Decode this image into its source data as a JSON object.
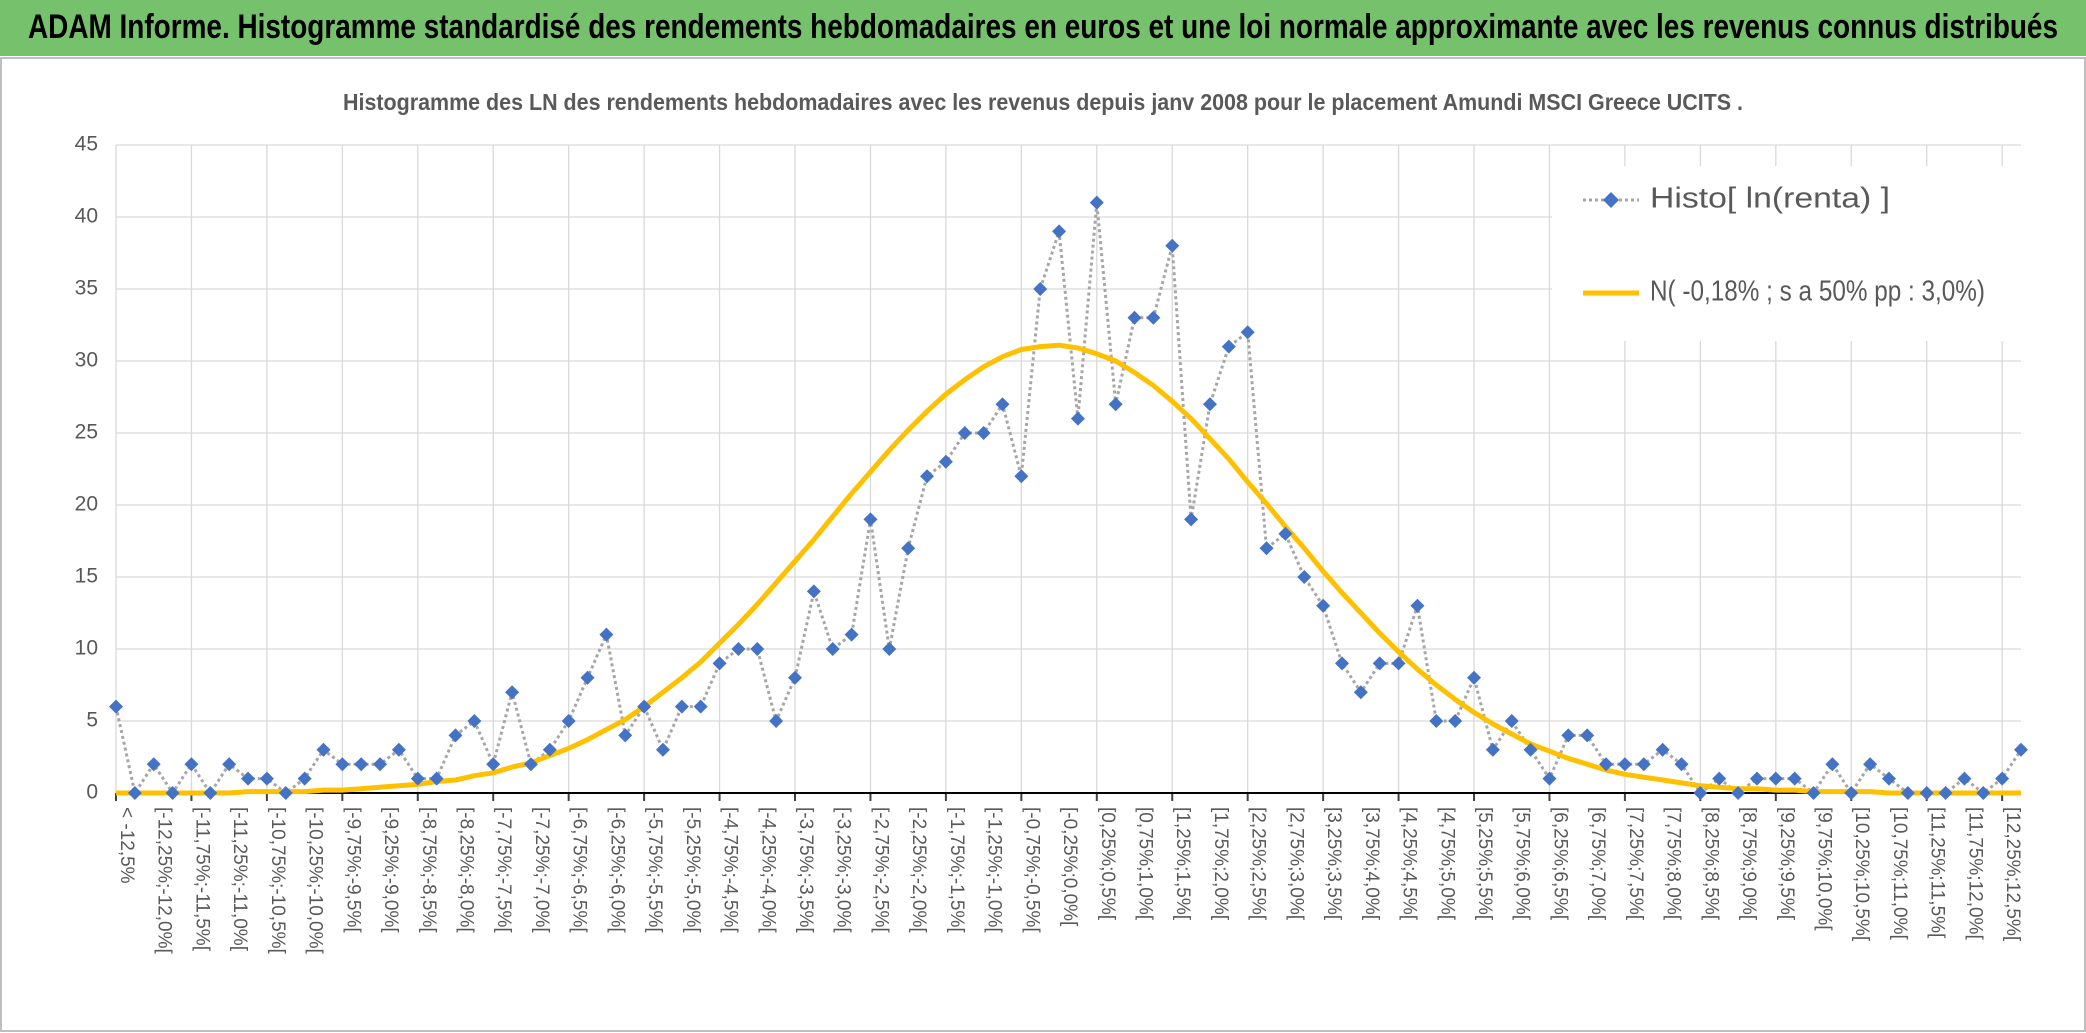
{
  "header": {
    "title": "ADAM Informe. Histogramme standardisé des rendements hebdomadaires en euros et une loi normale approximante avec les revenus connus distribués"
  },
  "chart_data": {
    "type": "line",
    "title": "Histogramme des LN des rendements hebdomadaires avec les revenus depuis janv 2008 pour le placement Amundi MSCI Greece UCITS .",
    "categories": [
      "< -12,5%",
      null,
      "[-12,25%;-12,0%[",
      null,
      "[-11,75%;-11,5%[",
      null,
      "[-11,25%;-11,0%[",
      null,
      "[-10,75%;-10,5%[",
      null,
      "[-10,25%;-10,0%[",
      null,
      "[-9,75%;-9,5%[",
      null,
      "[-9,25%;-9,0%[",
      null,
      "[-8,75%;-8,5%[",
      null,
      "[-8,25%;-8,0%[",
      null,
      "[-7,75%;-7,5%[",
      null,
      "[-7,25%;-7,0%[",
      null,
      "[-6,75%;-6,5%[",
      null,
      "[-6,25%;-6,0%[",
      null,
      "[-5,75%;-5,5%[",
      null,
      "[-5,25%;-5,0%[",
      null,
      "[-4,75%;-4,5%[",
      null,
      "[-4,25%;-4,0%[",
      null,
      "[-3,75%;-3,5%[",
      null,
      "[-3,25%;-3,0%[",
      null,
      "[-2,75%;-2,5%[",
      null,
      "[-2,25%;-2,0%[",
      null,
      "[-1,75%;-1,5%[",
      null,
      "[-1,25%;-1,0%[",
      null,
      "[-0,75%;-0,5%[",
      null,
      "[-0,25%;0,0%[",
      null,
      "[0,25%;0,5%[",
      null,
      "[0,75%;1,0%[",
      null,
      "[1,25%;1,5%[",
      null,
      "[1,75%;2,0%[",
      null,
      "[2,25%;2,5%[",
      null,
      "[2,75%;3,0%[",
      null,
      "[3,25%;3,5%[",
      null,
      "[3,75%;4,0%[",
      null,
      "[4,25%;4,5%[",
      null,
      "[4,75%;5,0%[",
      null,
      "[5,25%;5,5%[",
      null,
      "[5,75%;6,0%[",
      null,
      "[6,25%;6,5%[",
      null,
      "[6,75%;7,0%[",
      null,
      "[7,25%;7,5%[",
      null,
      "[7,75%;8,0%[",
      null,
      "[8,25%;8,5%[",
      null,
      "[8,75%;9,0%[",
      null,
      "[9,25%;9,5%[",
      null,
      "[9,75%;10,0%[",
      null,
      "[10,25%;10,5%[",
      null,
      "[10,75%;11,0%[",
      null,
      "[11,25%;11,5%[",
      null,
      "[11,75%;12,0%[",
      null,
      "[12,25%;12,5%[",
      null
    ],
    "series": [
      {
        "name": "Histo[ ln(renta) ]",
        "color": "#4472c4",
        "line_color": "#a6a6a6",
        "values": [
          6,
          0,
          2,
          0,
          2,
          0,
          2,
          1,
          1,
          0,
          1,
          3,
          2,
          2,
          2,
          3,
          1,
          1,
          4,
          5,
          2,
          7,
          2,
          3,
          5,
          8,
          11,
          4,
          6,
          3,
          6,
          6,
          9,
          10,
          10,
          5,
          8,
          14,
          10,
          11,
          19,
          10,
          17,
          22,
          23,
          25,
          25,
          27,
          22,
          35,
          39,
          26,
          41,
          27,
          33,
          33,
          38,
          19,
          27,
          31,
          32,
          17,
          18,
          15,
          13,
          9,
          7,
          9,
          9,
          13,
          5,
          5,
          8,
          3,
          5,
          3,
          1,
          4,
          4,
          2,
          2,
          2,
          3,
          2,
          0,
          1,
          0,
          1,
          1,
          1,
          0,
          2,
          0,
          2,
          1,
          0,
          0,
          0,
          1,
          0,
          1,
          3
        ]
      },
      {
        "name": "N( -0,18% ; s a 50% pp : 3,0%)",
        "color": "#ffc000",
        "values": [
          0,
          0,
          0,
          0,
          0,
          0,
          0,
          0.1,
          0.1,
          0.1,
          0.1,
          0.2,
          0.2,
          0.3,
          0.4,
          0.5,
          0.6,
          0.8,
          0.9,
          1.2,
          1.4,
          1.8,
          2.1,
          2.6,
          3.1,
          3.7,
          4.4,
          5.1,
          6.0,
          7.0,
          8.0,
          9.1,
          10.4,
          11.7,
          13.1,
          14.6,
          16.1,
          17.6,
          19.2,
          20.8,
          22.3,
          23.8,
          25.2,
          26.5,
          27.7,
          28.7,
          29.6,
          30.3,
          30.8,
          31.0,
          31.1,
          30.9,
          30.5,
          30.0,
          29.2,
          28.3,
          27.2,
          26.0,
          24.6,
          23.2,
          21.6,
          20.1,
          18.5,
          17.0,
          15.4,
          13.9,
          12.5,
          11.1,
          9.8,
          8.6,
          7.5,
          6.5,
          5.6,
          4.8,
          4.1,
          3.4,
          2.9,
          2.4,
          2.0,
          1.6,
          1.3,
          1.1,
          0.9,
          0.7,
          0.5,
          0.4,
          0.3,
          0.3,
          0.2,
          0.2,
          0.1,
          0.1,
          0.1,
          0.1,
          0,
          0,
          0,
          0,
          0,
          0,
          0,
          0
        ]
      }
    ],
    "ylim": [
      0,
      45
    ],
    "yticks": [
      0,
      5,
      10,
      15,
      20,
      25,
      30,
      35,
      40,
      45
    ],
    "grid": true,
    "legend": "top-right"
  }
}
